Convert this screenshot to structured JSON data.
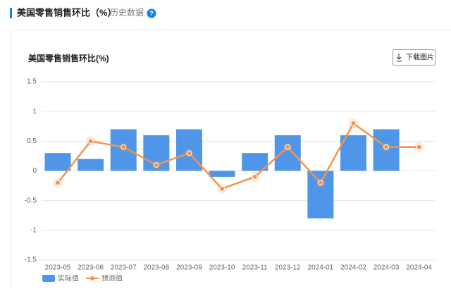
{
  "header": {
    "title": "美国零售销售环比（%）",
    "history": "历史数据"
  },
  "download": "下载图片",
  "chart_data": {
    "type": "bar",
    "title": "美国零售销售环比(%)",
    "categories": [
      "2023-05",
      "2023-06",
      "2023-07",
      "2023-08",
      "2023-09",
      "2023-10",
      "2023-11",
      "2023-12",
      "2024-01",
      "2024-02",
      "2024-03",
      "2024-04"
    ],
    "series": [
      {
        "name": "实际值",
        "type": "bar",
        "color": "#4f96e8",
        "values": [
          0.3,
          0.2,
          0.7,
          0.6,
          0.7,
          -0.1,
          0.3,
          0.6,
          -0.8,
          0.6,
          0.7,
          null
        ]
      },
      {
        "name": "预测值",
        "type": "line",
        "color": "#f5924e",
        "values": [
          -0.2,
          0.5,
          0.4,
          0.1,
          0.3,
          -0.3,
          -0.1,
          0.4,
          -0.2,
          0.8,
          0.4,
          0.4
        ]
      }
    ],
    "ylim": [
      -1.5,
      1.5
    ],
    "yticks": [
      -1.5,
      -1,
      -0.5,
      0,
      0.5,
      1,
      1.5
    ],
    "grid": true
  }
}
